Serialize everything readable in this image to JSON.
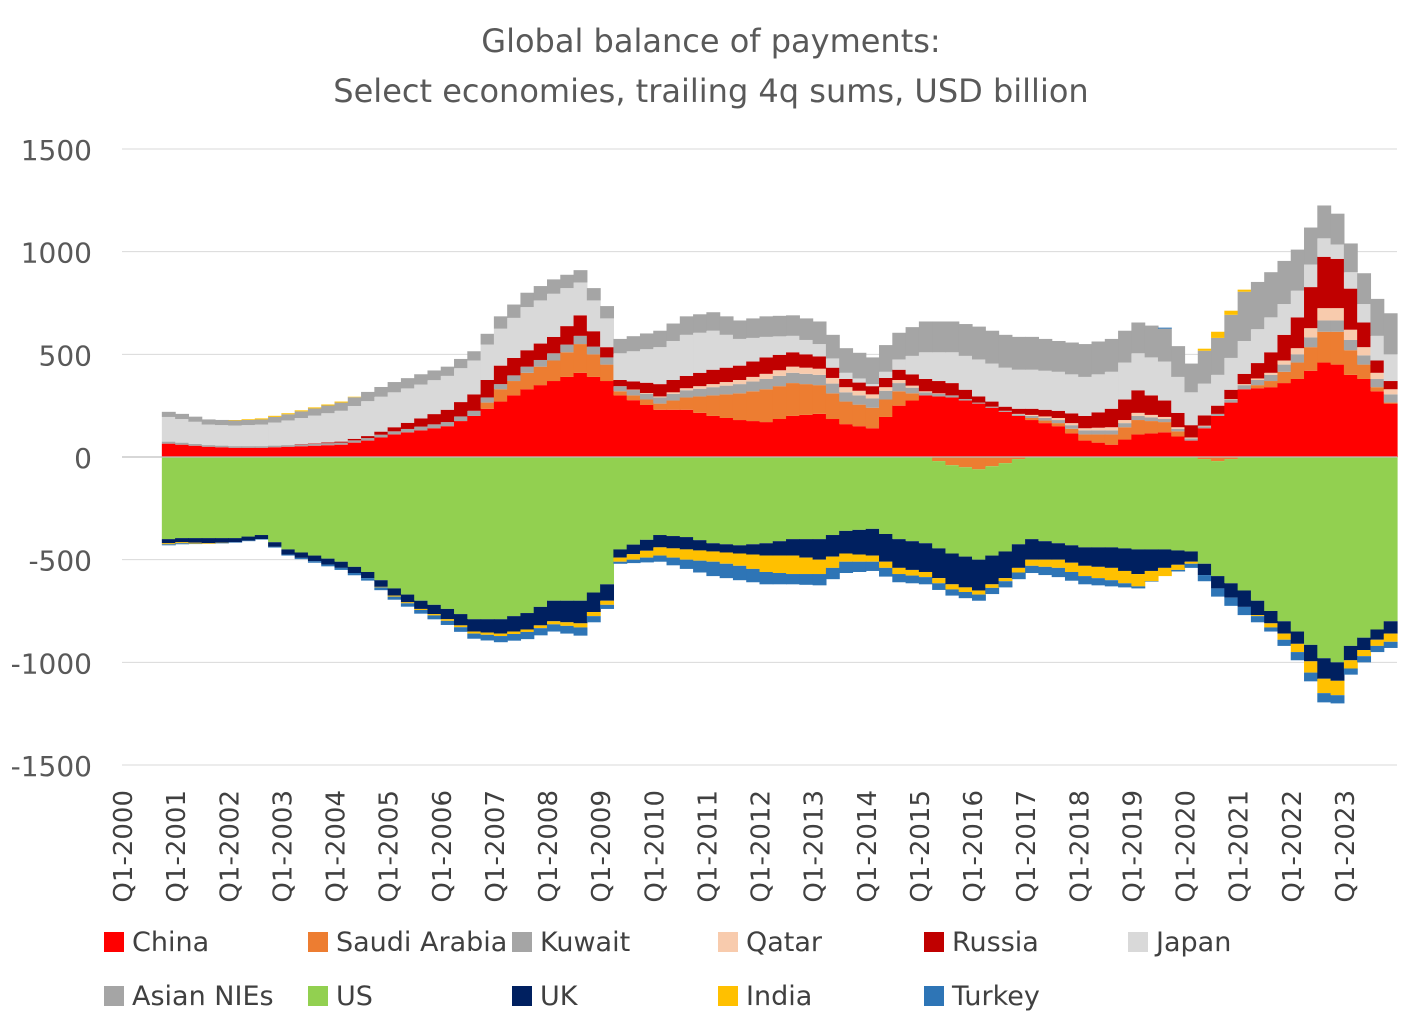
{
  "chart_data": {
    "type": "area",
    "title": "Global balance of payments:",
    "subtitle": "Select economies, trailing 4q sums, USD billion",
    "ylim": [
      -1500,
      1500
    ],
    "yticks": [
      1500,
      1000,
      500,
      0,
      -500,
      -1000,
      -1500
    ],
    "ytick_labels": [
      "1500",
      "1000",
      "500",
      "0",
      "-500",
      "-1000",
      "-1500"
    ],
    "xtick_labels": [
      "Q1-2000",
      "Q1-2001",
      "Q1-2002",
      "Q1-2003",
      "Q1-2004",
      "Q1-2005",
      "Q1-2006",
      "Q1-2007",
      "Q1-2008",
      "Q1-2009",
      "Q1-2010",
      "Q1-2011",
      "Q1-2012",
      "Q1-2013",
      "Q1-2014",
      "Q1-2015",
      "Q1-2016",
      "Q1-2017",
      "Q1-2018",
      "Q1-2019",
      "Q1-2020",
      "Q1-2021",
      "Q1-2022",
      "Q1-2023"
    ],
    "legend_position": "bottom",
    "grid": "horizontal",
    "anchors": [
      [
        2000.75,
        {
          "China": 65,
          "Saudi Arabia": 0,
          "Kuwait": 10,
          "Qatar": 0,
          "Russia": 0,
          "Japan": 120,
          "Asian NIEs": 25,
          "US": -400,
          "UK": -20,
          "India": -5,
          "Turkey": -5
        }
      ],
      [
        2001.0,
        {
          "China": 60,
          "Saudi Arabia": 0,
          "Kuwait": 10,
          "Qatar": 0,
          "Russia": 0,
          "Japan": 115,
          "Asian NIEs": 25,
          "US": -395,
          "UK": -20,
          "India": -5,
          "Turkey": -5
        }
      ],
      [
        2001.5,
        {
          "China": 50,
          "Saudi Arabia": 0,
          "Kuwait": 8,
          "Qatar": 0,
          "Russia": 0,
          "Japan": 100,
          "Asian NIEs": 25,
          "US": -395,
          "UK": -25,
          "India": -3,
          "Turkey": 0
        }
      ],
      [
        2002.0,
        {
          "China": 45,
          "Saudi Arabia": 0,
          "Kuwait": 8,
          "Qatar": 0,
          "Russia": 0,
          "Japan": 100,
          "Asian NIEs": 25,
          "US": -395,
          "UK": -20,
          "India": 2,
          "Turkey": -2
        }
      ],
      [
        2002.5,
        {
          "China": 45,
          "Saudi Arabia": 0,
          "Kuwait": 8,
          "Qatar": 0,
          "Russia": 0,
          "Japan": 105,
          "Asian NIEs": 25,
          "US": -380,
          "UK": -20,
          "India": 5,
          "Turkey": -2
        }
      ],
      [
        2003.0,
        {
          "China": 50,
          "Saudi Arabia": 0,
          "Kuwait": 8,
          "Qatar": 0,
          "Russia": 0,
          "Japan": 120,
          "Asian NIEs": 30,
          "US": -450,
          "UK": -25,
          "India": 5,
          "Turkey": -5
        }
      ],
      [
        2004.0,
        {
          "China": 60,
          "Saudi Arabia": 0,
          "Kuwait": 10,
          "Qatar": 0,
          "Russia": 5,
          "Japan": 150,
          "Asian NIEs": 40,
          "US": -510,
          "UK": -30,
          "India": 5,
          "Turkey": -10
        }
      ],
      [
        2004.5,
        {
          "China": 80,
          "Saudi Arabia": 0,
          "Kuwait": 12,
          "Qatar": 0,
          "Russia": 10,
          "Japan": 170,
          "Asian NIEs": 45,
          "US": -560,
          "UK": -30,
          "India": 0,
          "Turkey": -12
        }
      ],
      [
        2005.0,
        {
          "China": 110,
          "Saudi Arabia": 0,
          "Kuwait": 15,
          "Qatar": 0,
          "Russia": 20,
          "Japan": 170,
          "Asian NIEs": 50,
          "US": -640,
          "UK": -35,
          "India": -5,
          "Turkey": -15
        }
      ],
      [
        2005.5,
        {
          "China": 130,
          "Saudi Arabia": 0,
          "Kuwait": 18,
          "Qatar": 0,
          "Russia": 40,
          "Japan": 165,
          "Asian NIEs": 50,
          "US": -700,
          "UK": -40,
          "India": -5,
          "Turkey": -18
        }
      ],
      [
        2006.0,
        {
          "China": 150,
          "Saudi Arabia": 0,
          "Kuwait": 20,
          "Qatar": 0,
          "Russia": 60,
          "Japan": 165,
          "Asian NIEs": 45,
          "US": -740,
          "UK": -50,
          "India": -8,
          "Turkey": -20
        }
      ],
      [
        2006.5,
        {
          "China": 200,
          "Saudi Arabia": 0,
          "Kuwait": 25,
          "Qatar": 0,
          "Russia": 80,
          "Japan": 165,
          "Asian NIEs": 45,
          "US": -790,
          "UK": -60,
          "India": -10,
          "Turkey": -25
        }
      ],
      [
        2007.0,
        {
          "China": 270,
          "Saudi Arabia": 60,
          "Kuwait": 25,
          "Qatar": 0,
          "Russia": 90,
          "Japan": 180,
          "Asian NIEs": 60,
          "US": -790,
          "UK": -70,
          "India": -12,
          "Turkey": -30
        }
      ],
      [
        2007.5,
        {
          "China": 330,
          "Saudi Arabia": 80,
          "Kuwait": 30,
          "Qatar": 0,
          "Russia": 80,
          "Japan": 210,
          "Asian NIEs": 70,
          "US": -760,
          "UK": -80,
          "India": -12,
          "Turkey": -35
        }
      ],
      [
        2008.0,
        {
          "China": 370,
          "Saudi Arabia": 100,
          "Kuwait": 35,
          "Qatar": 0,
          "Russia": 80,
          "Japan": 210,
          "Asian NIEs": 70,
          "US": -700,
          "UK": -100,
          "India": -15,
          "Turkey": -35
        }
      ],
      [
        2008.5,
        {
          "China": 410,
          "Saudi Arabia": 140,
          "Kuwait": 40,
          "Qatar": 0,
          "Russia": 100,
          "Japan": 160,
          "Asian NIEs": 60,
          "US": -700,
          "UK": -110,
          "India": -20,
          "Turkey": -40
        }
      ],
      [
        2009.0,
        {
          "China": 370,
          "Saudi Arabia": 80,
          "Kuwait": 35,
          "Qatar": 0,
          "Russia": 50,
          "Japan": 140,
          "Asian NIEs": 60,
          "US": -620,
          "UK": -80,
          "India": -20,
          "Turkey": -20
        }
      ],
      [
        2009.25,
        {
          "China": 300,
          "Saudi Arabia": 20,
          "Kuwait": 25,
          "Qatar": 0,
          "Russia": 30,
          "Japan": 130,
          "Asian NIEs": 70,
          "US": -450,
          "UK": -40,
          "India": -20,
          "Turkey": -10
        }
      ],
      [
        2010.0,
        {
          "China": 230,
          "Saudi Arabia": 30,
          "Kuwait": 30,
          "Qatar": 5,
          "Russia": 60,
          "Japan": 180,
          "Asian NIEs": 80,
          "US": -380,
          "UK": -60,
          "India": -40,
          "Turkey": -30
        }
      ],
      [
        2010.5,
        {
          "China": 230,
          "Saudi Arabia": 60,
          "Kuwait": 35,
          "Qatar": 10,
          "Russia": 60,
          "Japan": 200,
          "Asian NIEs": 90,
          "US": -390,
          "UK": -60,
          "India": -50,
          "Turkey": -45
        }
      ],
      [
        2011.0,
        {
          "China": 200,
          "Saudi Arabia": 100,
          "Kuwait": 40,
          "Qatar": 15,
          "Russia": 70,
          "Japan": 190,
          "Asian NIEs": 90,
          "US": -420,
          "UK": -40,
          "India": -50,
          "Turkey": -70
        }
      ],
      [
        2011.5,
        {
          "China": 180,
          "Saudi Arabia": 130,
          "Kuwait": 45,
          "Qatar": 20,
          "Russia": 70,
          "Japan": 130,
          "Asian NIEs": 90,
          "US": -430,
          "UK": -40,
          "India": -60,
          "Turkey": -70
        }
      ],
      [
        2012.0,
        {
          "China": 170,
          "Saudi Arabia": 160,
          "Kuwait": 50,
          "Qatar": 25,
          "Russia": 80,
          "Japan": 100,
          "Asian NIEs": 100,
          "US": -420,
          "UK": -60,
          "India": -80,
          "Turkey": -60
        }
      ],
      [
        2012.5,
        {
          "China": 200,
          "Saudi Arabia": 160,
          "Kuwait": 50,
          "Qatar": 30,
          "Russia": 70,
          "Japan": 80,
          "Asian NIEs": 100,
          "US": -400,
          "UK": -80,
          "India": -90,
          "Turkey": -50
        }
      ],
      [
        2013.0,
        {
          "China": 210,
          "Saudi Arabia": 140,
          "Kuwait": 50,
          "Qatar": 30,
          "Russia": 60,
          "Japan": 60,
          "Asian NIEs": 110,
          "US": -400,
          "UK": -100,
          "India": -70,
          "Turkey": -55
        }
      ],
      [
        2013.5,
        {
          "China": 160,
          "Saudi Arabia": 110,
          "Kuwait": 45,
          "Qatar": 25,
          "Russia": 40,
          "Japan": 30,
          "Asian NIEs": 120,
          "US": -360,
          "UK": -110,
          "India": -40,
          "Turkey": -55
        }
      ],
      [
        2014.0,
        {
          "China": 140,
          "Saudi Arabia": 100,
          "Kuwait": 45,
          "Qatar": 20,
          "Russia": 40,
          "Japan": 10,
          "Asian NIEs": 130,
          "US": -350,
          "UK": -130,
          "India": -30,
          "Turkey": -45
        }
      ],
      [
        2014.5,
        {
          "China": 250,
          "Saudi Arabia": 70,
          "Kuwait": 40,
          "Qatar": 15,
          "Russia": 50,
          "Japan": 50,
          "Asian NIEs": 130,
          "US": -400,
          "UK": -140,
          "India": -30,
          "Turkey": -40
        }
      ],
      [
        2015.0,
        {
          "China": 300,
          "Saudi Arabia": 0,
          "Kuwait": 15,
          "Qatar": 5,
          "Russia": 60,
          "Japan": 130,
          "Asian NIEs": 150,
          "US": -420,
          "UK": -140,
          "India": -25,
          "Turkey": -35
        }
      ],
      [
        2015.5,
        {
          "China": 290,
          "Saudi Arabia": -40,
          "Kuwait": 10,
          "Qatar": 0,
          "Russia": 60,
          "Japan": 150,
          "Asian NIEs": 150,
          "US": -430,
          "UK": -150,
          "India": -25,
          "Turkey": -30
        }
      ],
      [
        2016.0,
        {
          "China": 260,
          "Saudi Arabia": -60,
          "Kuwait": 5,
          "Qatar": 0,
          "Russia": 30,
          "Japan": 180,
          "Asian NIEs": 160,
          "US": -440,
          "UK": -150,
          "India": -20,
          "Turkey": -30
        }
      ],
      [
        2016.5,
        {
          "China": 220,
          "Saudi Arabia": -30,
          "Kuwait": 5,
          "Qatar": 0,
          "Russia": 20,
          "Japan": 190,
          "Asian NIEs": 160,
          "US": -430,
          "UK": -130,
          "India": -15,
          "Turkey": -30
        }
      ],
      [
        2017.0,
        {
          "China": 180,
          "Saudi Arabia": 10,
          "Kuwait": 10,
          "Qatar": 5,
          "Russia": 30,
          "Japan": 190,
          "Asian NIEs": 160,
          "US": -400,
          "UK": -100,
          "India": -30,
          "Turkey": -35
        }
      ],
      [
        2017.5,
        {
          "China": 150,
          "Saudi Arabia": 15,
          "Kuwait": 15,
          "Qatar": 10,
          "Russia": 35,
          "Japan": 190,
          "Asian NIEs": 150,
          "US": -420,
          "UK": -80,
          "India": -40,
          "Turkey": -45
        }
      ],
      [
        2018.0,
        {
          "China": 80,
          "Saudi Arabia": 30,
          "Kuwait": 20,
          "Qatar": 10,
          "Russia": 60,
          "Japan": 190,
          "Asian NIEs": 160,
          "US": -440,
          "UK": -90,
          "India": -50,
          "Turkey": -40
        }
      ],
      [
        2018.5,
        {
          "China": 60,
          "Saudi Arabia": 50,
          "Kuwait": 20,
          "Qatar": 15,
          "Russia": 90,
          "Japan": 180,
          "Asian NIEs": 160,
          "US": -440,
          "UK": -100,
          "India": -60,
          "Turkey": -30
        }
      ],
      [
        2019.0,
        {
          "China": 110,
          "Saudi Arabia": 70,
          "Kuwait": 20,
          "Qatar": 15,
          "Russia": 110,
          "Japan": 180,
          "Asian NIEs": 150,
          "US": -450,
          "UK": -120,
          "India": -60,
          "Turkey": -10
        }
      ],
      [
        2019.5,
        {
          "China": 120,
          "Saudi Arabia": 50,
          "Kuwait": 15,
          "Qatar": 10,
          "Russia": 80,
          "Japan": 190,
          "Asian NIEs": 160,
          "US": -450,
          "UK": -90,
          "India": -40,
          "Turkey": 5
        }
      ],
      [
        2020.0,
        {
          "China": 80,
          "Saudi Arabia": 0,
          "Kuwait": 10,
          "Qatar": 5,
          "Russia": 60,
          "Japan": 160,
          "Asian NIEs": 140,
          "US": -460,
          "UK": -50,
          "India": -10,
          "Turkey": -20
        }
      ],
      [
        2020.5,
        {
          "China": 200,
          "Saudi Arabia": -20,
          "Kuwait": 10,
          "Qatar": 0,
          "Russia": 40,
          "Japan": 150,
          "Asian NIEs": 180,
          "US": -560,
          "UK": -60,
          "India": 30,
          "Turkey": -40
        }
      ],
      [
        2021.0,
        {
          "China": 330,
          "Saudi Arabia": 0,
          "Kuwait": 20,
          "Qatar": 5,
          "Russia": 50,
          "Japan": 160,
          "Asian NIEs": 240,
          "US": -650,
          "UK": -80,
          "India": 10,
          "Turkey": -40
        }
      ],
      [
        2021.5,
        {
          "China": 340,
          "Saudi Arabia": 30,
          "Kuwait": 30,
          "Qatar": 10,
          "Russia": 100,
          "Japan": 170,
          "Asian NIEs": 220,
          "US": -750,
          "UK": -60,
          "India": -20,
          "Turkey": -20
        }
      ],
      [
        2022.0,
        {
          "China": 380,
          "Saudi Arabia": 80,
          "Kuwait": 40,
          "Qatar": 30,
          "Russia": 150,
          "Japan": 130,
          "Asian NIEs": 200,
          "US": -850,
          "UK": -60,
          "India": -40,
          "Turkey": -40
        }
      ],
      [
        2022.5,
        {
          "China": 460,
          "Saudi Arabia": 150,
          "Kuwait": 55,
          "Qatar": 60,
          "Russia": 250,
          "Japan": 90,
          "Asian NIEs": 160,
          "US": -980,
          "UK": -100,
          "India": -70,
          "Turkey": -45
        }
      ],
      [
        2022.75,
        {
          "China": 450,
          "Saudi Arabia": 160,
          "Kuwait": 55,
          "Qatar": 60,
          "Russia": 240,
          "Japan": 70,
          "Asian NIEs": 150,
          "US": -1000,
          "UK": -90,
          "India": -70,
          "Turkey": -40
        }
      ],
      [
        2023.0,
        {
          "China": 400,
          "Saudi Arabia": 120,
          "Kuwait": 50,
          "Qatar": 50,
          "Russia": 200,
          "Japan": 80,
          "Asian NIEs": 140,
          "US": -920,
          "UK": -70,
          "India": -40,
          "Turkey": -30
        }
      ],
      [
        2023.25,
        {
          "China": 380,
          "Saudi Arabia": 70,
          "Kuwait": 45,
          "Qatar": 40,
          "Russia": 120,
          "Japan": 90,
          "Asian NIEs": 150,
          "US": -880,
          "UK": -60,
          "India": -30,
          "Turkey": -30
        }
      ],
      [
        2023.5,
        {
          "China": 320,
          "Saudi Arabia": 20,
          "Kuwait": 40,
          "Qatar": 30,
          "Russia": 60,
          "Japan": 120,
          "Asian NIEs": 180,
          "US": -840,
          "UK": -50,
          "India": -30,
          "Turkey": -30
        }
      ],
      [
        2023.75,
        {
          "China": 260,
          "Saudi Arabia": 5,
          "Kuwait": 40,
          "Qatar": 25,
          "Russia": 40,
          "Japan": 130,
          "Asian NIEs": 200,
          "US": -800,
          "UK": -60,
          "India": -40,
          "Turkey": -30
        }
      ]
    ],
    "series": [
      {
        "name": "China",
        "color": "#FF0000"
      },
      {
        "name": "Saudi Arabia",
        "color": "#ED7D31"
      },
      {
        "name": "Kuwait",
        "color": "#A5A5A5"
      },
      {
        "name": "Qatar",
        "color": "#F8CBAD"
      },
      {
        "name": "Russia",
        "color": "#C00000"
      },
      {
        "name": "Japan",
        "color": "#D9D9D9"
      },
      {
        "name": "Asian NIEs",
        "color": "#A5A5A5"
      },
      {
        "name": "US",
        "color": "#92D050"
      },
      {
        "name": "UK",
        "color": "#002060"
      },
      {
        "name": "India",
        "color": "#FFC000"
      },
      {
        "name": "Turkey",
        "color": "#2E75B6"
      }
    ]
  },
  "legend": {
    "items": [
      {
        "label": "China",
        "color": "#FF0000"
      },
      {
        "label": "Saudi Arabia",
        "color": "#ED7D31"
      },
      {
        "label": "Kuwait",
        "color": "#A5A5A5"
      },
      {
        "label": "Qatar",
        "color": "#F8CBAD"
      },
      {
        "label": "Russia",
        "color": "#C00000"
      },
      {
        "label": "Japan",
        "color": "#D9D9D9"
      },
      {
        "label": "Asian NIEs",
        "color": "#A5A5A5"
      },
      {
        "label": "US",
        "color": "#92D050"
      },
      {
        "label": "UK",
        "color": "#002060"
      },
      {
        "label": "India",
        "color": "#FFC000"
      },
      {
        "label": "Turkey",
        "color": "#2E75B6"
      }
    ]
  }
}
